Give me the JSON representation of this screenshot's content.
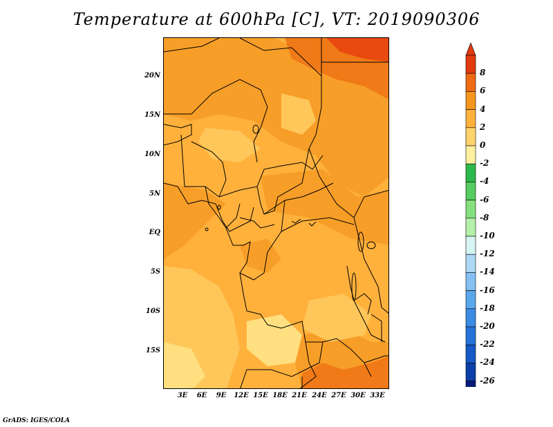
{
  "title": "Temperature at 600hPa [C], VT: 2019090306",
  "footer": "GrADS: IGES/COLA",
  "map": {
    "y_ticks": [
      "20N",
      "15N",
      "10N",
      "5N",
      "EQ",
      "5S",
      "10S",
      "15S"
    ],
    "x_ticks": [
      "3E",
      "6E",
      "9E",
      "12E",
      "15E",
      "18E",
      "21E",
      "24E",
      "27E",
      "30E",
      "33E"
    ],
    "base_color": "#FFB13C"
  },
  "colorbar": {
    "labels": [
      "8",
      "6",
      "4",
      "2",
      "0",
      "-2",
      "-4",
      "-6",
      "-8",
      "-10",
      "-12",
      "-14",
      "-16",
      "-18",
      "-20",
      "-22",
      "-24",
      "-26"
    ],
    "colors": [
      "#E43A0F",
      "#F06A14",
      "#F5951E",
      "#FFB13C",
      "#FFD26B",
      "#FFF0A0",
      "#2DB84B",
      "#55CC5F",
      "#85E07E",
      "#B4F0AA",
      "#D6F5F2",
      "#ACD8F6",
      "#84C1F2",
      "#5AA7EC",
      "#3A8BE3",
      "#2473D8",
      "#1559C7",
      "#0B3FA8",
      "#04197A"
    ],
    "top_triangle_color": "#E03A10",
    "bottom_triangle_color": "#D8D8F8"
  }
}
